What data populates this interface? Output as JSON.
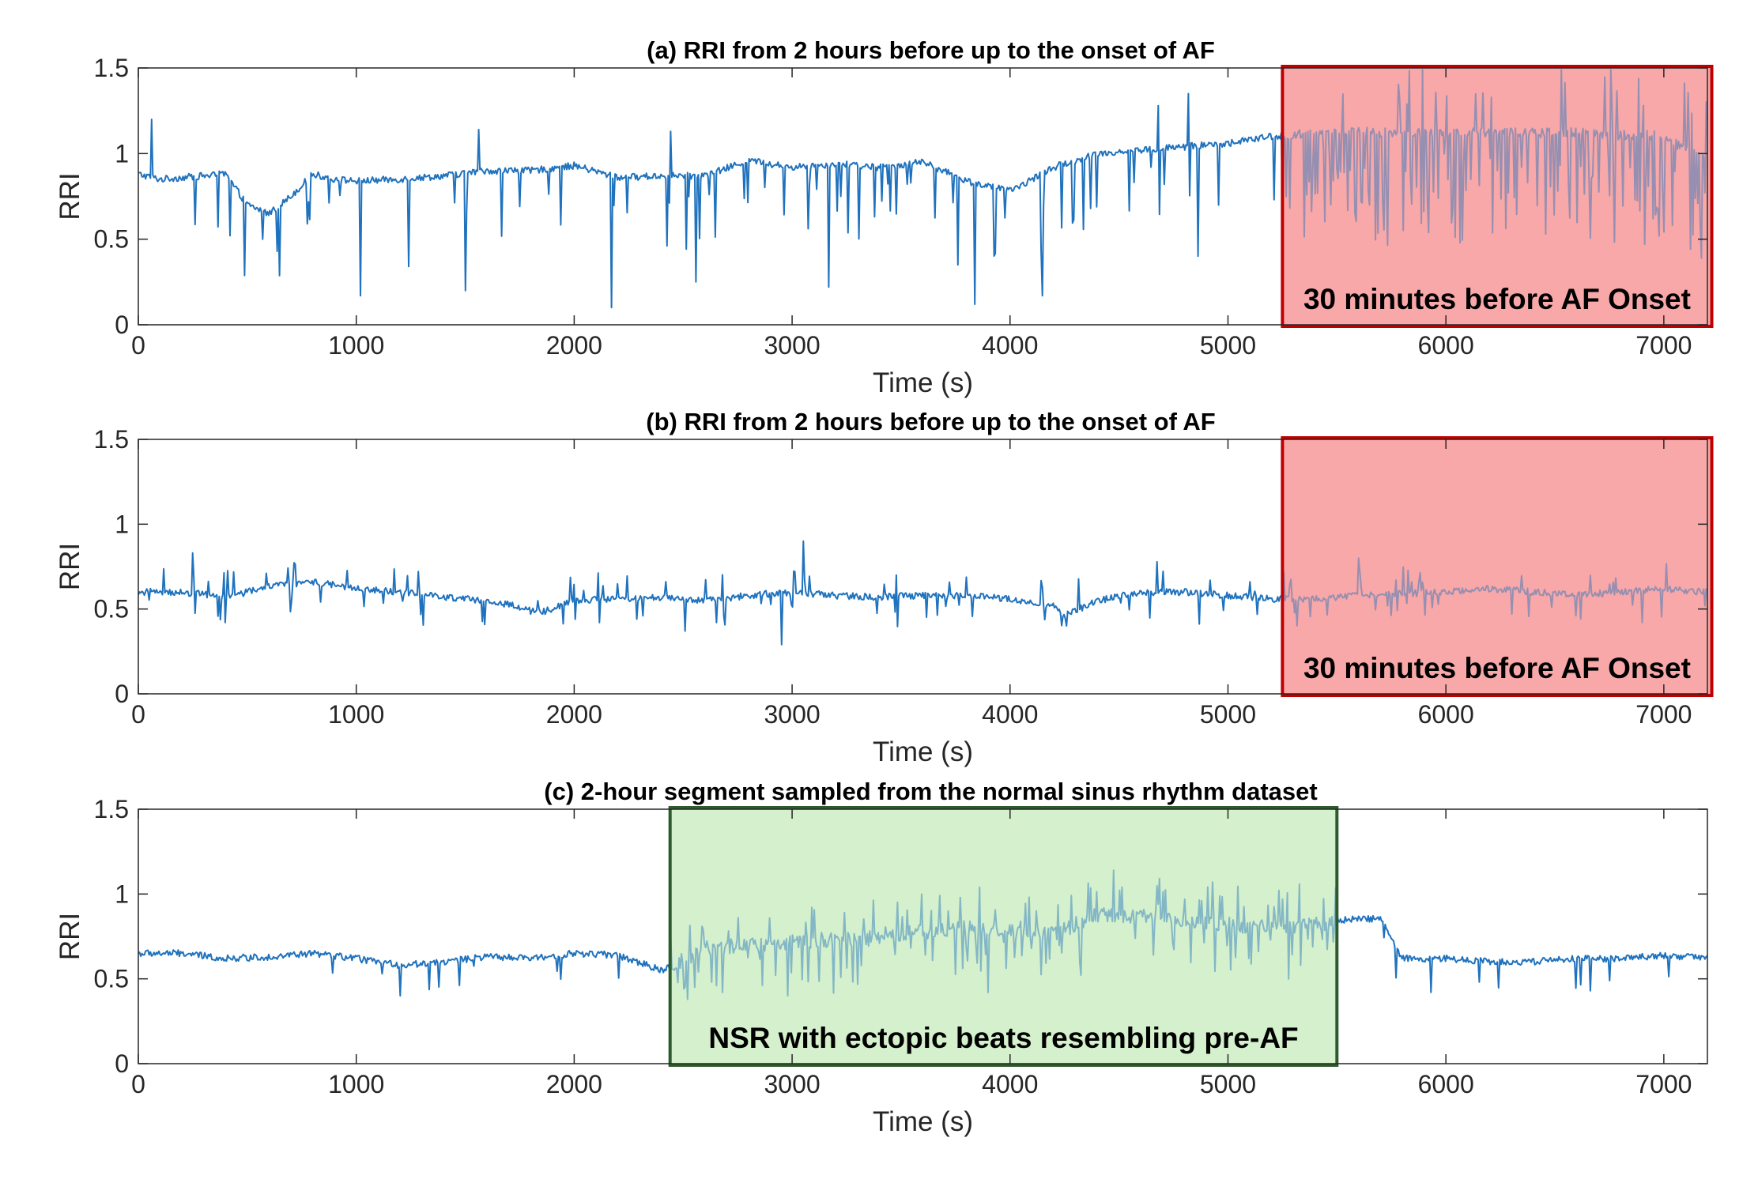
{
  "chart_data": [
    {
      "type": "line",
      "title": "(a) RRI from 2 hours before up to the onset of AF",
      "xlabel": "Time (s)",
      "ylabel": "RRI",
      "xlim": [
        0,
        7200
      ],
      "ylim": [
        0,
        1.5
      ],
      "xticks": [
        0,
        1000,
        2000,
        3000,
        4000,
        5000,
        6000,
        7000
      ],
      "yticks": [
        0,
        0.5,
        1,
        1.5
      ],
      "ytick_labels": [
        "0",
        "0.5",
        "1",
        "1.5"
      ],
      "grid": false,
      "line_color": "#1f72bd",
      "series": [
        {
          "x": [
            0,
            100,
            200,
            300,
            400,
            500,
            600,
            700,
            800,
            900,
            1000,
            1200,
            1400,
            1600,
            1800,
            2000,
            2200,
            2400,
            2600,
            2800,
            3000,
            3200,
            3400,
            3600,
            3800,
            4000,
            4100,
            4200,
            4400,
            4600,
            4800,
            5000,
            5200,
            5400,
            5600,
            5800,
            6000,
            6200,
            6400,
            6600,
            6800,
            7000,
            7200
          ],
          "values": [
            0.88,
            0.85,
            0.86,
            0.87,
            0.88,
            0.7,
            0.65,
            0.75,
            0.88,
            0.85,
            0.84,
            0.85,
            0.87,
            0.9,
            0.9,
            0.93,
            0.86,
            0.87,
            0.87,
            0.96,
            0.92,
            0.94,
            0.92,
            0.95,
            0.84,
            0.78,
            0.85,
            0.92,
            1.0,
            1.02,
            1.04,
            1.06,
            1.1,
            1.12,
            1.13,
            1.12,
            1.12,
            1.13,
            1.12,
            1.12,
            1.11,
            1.1,
            0.95
          ]
        }
      ],
      "spikes": [
        {
          "x": 60,
          "y": 1.2
        },
        {
          "x": 420,
          "y": 0.52
        },
        {
          "x": 570,
          "y": 0.5
        },
        {
          "x": 1020,
          "y": 0.17
        },
        {
          "x": 1240,
          "y": 0.34
        },
        {
          "x": 1500,
          "y": 0.2
        },
        {
          "x": 1560,
          "y": 1.14
        },
        {
          "x": 2170,
          "y": 0.1
        },
        {
          "x": 2440,
          "y": 1.13
        },
        {
          "x": 2560,
          "y": 0.25
        },
        {
          "x": 3170,
          "y": 0.22
        },
        {
          "x": 3760,
          "y": 0.35
        },
        {
          "x": 3840,
          "y": 0.12
        },
        {
          "x": 4150,
          "y": 0.17
        },
        {
          "x": 4680,
          "y": 1.28
        },
        {
          "x": 4820,
          "y": 1.35
        },
        {
          "x": 4860,
          "y": 0.4
        }
      ],
      "regions": [
        {
          "x0": 5250,
          "x1": 7220,
          "color": "#f8a8a8",
          "edge": "#c00000",
          "label": "30 minutes before AF Onset"
        }
      ]
    },
    {
      "type": "line",
      "title": "(b) RRI from 2 hours before up to the onset of AF",
      "xlabel": "Time (s)",
      "ylabel": "RRI",
      "xlim": [
        0,
        7200
      ],
      "ylim": [
        0,
        1.5
      ],
      "xticks": [
        0,
        1000,
        2000,
        3000,
        4000,
        5000,
        6000,
        7000
      ],
      "yticks": [
        0,
        0.5,
        1,
        1.5
      ],
      "ytick_labels": [
        "0",
        "0.5",
        "1",
        "1.5"
      ],
      "grid": false,
      "line_color": "#1f72bd",
      "series": [
        {
          "x": [
            0,
            200,
            400,
            600,
            800,
            1000,
            1200,
            1400,
            1600,
            1800,
            1850,
            2000,
            2200,
            2400,
            2600,
            2800,
            3000,
            3200,
            3400,
            3600,
            3800,
            4000,
            4200,
            4250,
            4400,
            4600,
            4800,
            5000,
            5200,
            5400,
            5600,
            5800,
            6000,
            6200,
            6400,
            6600,
            6800,
            7000,
            7200
          ],
          "values": [
            0.6,
            0.6,
            0.57,
            0.63,
            0.66,
            0.62,
            0.6,
            0.57,
            0.55,
            0.5,
            0.48,
            0.55,
            0.56,
            0.57,
            0.55,
            0.58,
            0.6,
            0.58,
            0.57,
            0.58,
            0.58,
            0.56,
            0.52,
            0.46,
            0.55,
            0.6,
            0.6,
            0.58,
            0.56,
            0.56,
            0.58,
            0.59,
            0.6,
            0.62,
            0.6,
            0.58,
            0.6,
            0.62,
            0.6
          ]
        }
      ],
      "spikes": [
        {
          "x": 250,
          "y": 0.83
        },
        {
          "x": 1800,
          "y": 0.47
        },
        {
          "x": 2510,
          "y": 0.37
        },
        {
          "x": 2950,
          "y": 0.29
        },
        {
          "x": 3050,
          "y": 0.9
        },
        {
          "x": 4260,
          "y": 0.4
        },
        {
          "x": 5600,
          "y": 0.8
        },
        {
          "x": 6900,
          "y": 0.42
        }
      ],
      "regions": [
        {
          "x0": 5250,
          "x1": 7220,
          "color": "#f8a8a8",
          "edge": "#c00000",
          "label": "30 minutes before AF Onset"
        }
      ]
    },
    {
      "type": "line",
      "title": "(c) 2-hour segment sampled from the normal sinus rhythm dataset",
      "xlabel": "Time (s)",
      "ylabel": "RRI",
      "xlim": [
        0,
        7200
      ],
      "ylim": [
        0,
        1.5
      ],
      "xticks": [
        0,
        1000,
        2000,
        3000,
        4000,
        5000,
        6000,
        7000
      ],
      "yticks": [
        0,
        0.5,
        1,
        1.5
      ],
      "ytick_labels": [
        "0",
        "0.5",
        "1",
        "1.5"
      ],
      "grid": false,
      "line_color": "#1f72bd",
      "series": [
        {
          "x": [
            0,
            200,
            400,
            600,
            800,
            1000,
            1200,
            1400,
            1600,
            1800,
            2000,
            2200,
            2400,
            2600,
            2800,
            3000,
            3200,
            3400,
            3600,
            3800,
            4000,
            4200,
            4400,
            4600,
            4800,
            5000,
            5200,
            5400,
            5600,
            5700,
            5800,
            6000,
            6200,
            6400,
            6600,
            6800,
            7000,
            7200
          ],
          "values": [
            0.65,
            0.65,
            0.62,
            0.63,
            0.65,
            0.62,
            0.58,
            0.6,
            0.63,
            0.62,
            0.65,
            0.64,
            0.55,
            0.68,
            0.7,
            0.72,
            0.73,
            0.74,
            0.78,
            0.8,
            0.78,
            0.76,
            0.88,
            0.87,
            0.85,
            0.82,
            0.8,
            0.82,
            0.86,
            0.85,
            0.62,
            0.62,
            0.6,
            0.6,
            0.62,
            0.62,
            0.64,
            0.62
          ]
        }
      ],
      "spikes": [
        {
          "x": 1200,
          "y": 0.4
        },
        {
          "x": 2680,
          "y": 0.42
        },
        {
          "x": 2980,
          "y": 0.4
        },
        {
          "x": 3860,
          "y": 1.04
        },
        {
          "x": 3900,
          "y": 0.42
        },
        {
          "x": 4930,
          "y": 1.07
        },
        {
          "x": 5280,
          "y": 0.5
        },
        {
          "x": 5930,
          "y": 0.42
        },
        {
          "x": 6660,
          "y": 0.43
        }
      ],
      "regions": [
        {
          "x0": 2440,
          "x1": 5500,
          "color": "#d5f0cc",
          "edge": "#2d5b2d",
          "label": "NSR with ectopic beats resembling pre-AF"
        }
      ]
    }
  ]
}
